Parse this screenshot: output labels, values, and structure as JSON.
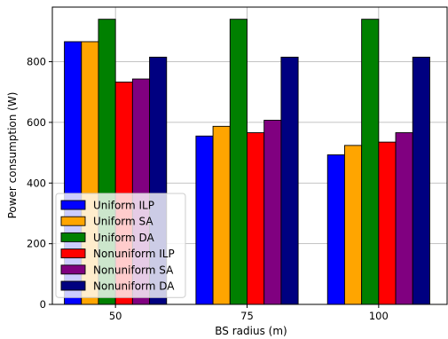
{
  "chart_data": {
    "type": "bar",
    "title": "",
    "xlabel": "BS radius (m)",
    "ylabel": "Power consumption (W)",
    "categories": [
      "50",
      "75",
      "100"
    ],
    "ylim": [
      0,
      980
    ],
    "yticks": [
      0,
      200,
      400,
      600,
      800
    ],
    "grid": true,
    "legend_position": "lower-left",
    "series": [
      {
        "name": "Uniform ILP",
        "color": "#0000ff",
        "values": [
          866,
          555,
          493
        ]
      },
      {
        "name": "Uniform SA",
        "color": "#ffa500",
        "values": [
          866,
          587,
          524
        ]
      },
      {
        "name": "Uniform DA",
        "color": "#008000",
        "values": [
          940,
          940,
          940
        ]
      },
      {
        "name": "Nonuniform ILP",
        "color": "#ff0000",
        "values": [
          733,
          566,
          535
        ]
      },
      {
        "name": "Nonuniform SA",
        "color": "#800080",
        "values": [
          743,
          607,
          566
        ]
      },
      {
        "name": "Nonuniform DA",
        "color": "#000080",
        "values": [
          815,
          815,
          815
        ]
      }
    ]
  }
}
